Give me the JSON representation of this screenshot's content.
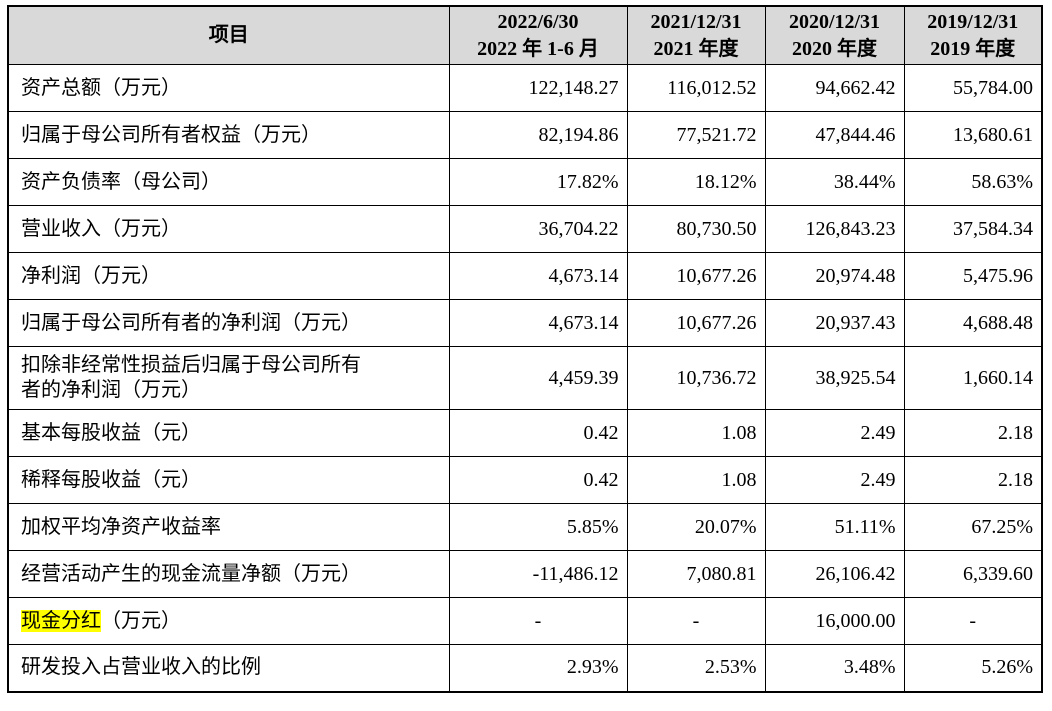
{
  "header": {
    "item": "项目",
    "periods": [
      {
        "date": "2022/6/30",
        "span": "2022 年 1-6 月"
      },
      {
        "date": "2021/12/31",
        "span": "2021 年度"
      },
      {
        "date": "2020/12/31",
        "span": "2020 年度"
      },
      {
        "date": "2019/12/31",
        "span": "2019 年度"
      }
    ]
  },
  "rows": [
    {
      "label": "资产总额（万元）",
      "values": [
        "122,148.27",
        "116,012.52",
        "94,662.42",
        "55,784.00"
      ]
    },
    {
      "label": "归属于母公司所有者权益（万元）",
      "values": [
        "82,194.86",
        "77,521.72",
        "47,844.46",
        "13,680.61"
      ]
    },
    {
      "label": "资产负债率（母公司）",
      "values": [
        "17.82%",
        "18.12%",
        "38.44%",
        "58.63%"
      ]
    },
    {
      "label": "营业收入（万元）",
      "values": [
        "36,704.22",
        "80,730.50",
        "126,843.23",
        "37,584.34"
      ]
    },
    {
      "label": "净利润（万元）",
      "values": [
        "4,673.14",
        "10,677.26",
        "20,974.48",
        "5,475.96"
      ]
    },
    {
      "label": "归属于母公司所有者的净利润（万元）",
      "values": [
        "4,673.14",
        "10,677.26",
        "20,937.43",
        "4,688.48"
      ]
    },
    {
      "label_line1": "扣除非经常性损益后归属于母公司所有",
      "label_line2": "者的净利润（万元）",
      "values": [
        "4,459.39",
        "10,736.72",
        "38,925.54",
        "1,660.14"
      ]
    },
    {
      "label": "基本每股收益（元）",
      "values": [
        "0.42",
        "1.08",
        "2.49",
        "2.18"
      ]
    },
    {
      "label": "稀释每股收益（元）",
      "values": [
        "0.42",
        "1.08",
        "2.49",
        "2.18"
      ]
    },
    {
      "label": "加权平均净资产收益率",
      "values": [
        "5.85%",
        "20.07%",
        "51.11%",
        "67.25%"
      ]
    },
    {
      "label": "经营活动产生的现金流量净额（万元）",
      "values": [
        "-11,486.12",
        "7,080.81",
        "26,106.42",
        "6,339.60"
      ]
    },
    {
      "label_highlight": "现金分红",
      "label_rest": "（万元）",
      "values": [
        "-",
        "-",
        "16,000.00",
        "-"
      ]
    },
    {
      "label": "研发投入占营业收入的比例",
      "values": [
        "2.93%",
        "2.53%",
        "3.48%",
        "5.26%"
      ]
    }
  ],
  "highlight_color": "#ffff00",
  "header_bg": "#d9d9d9"
}
